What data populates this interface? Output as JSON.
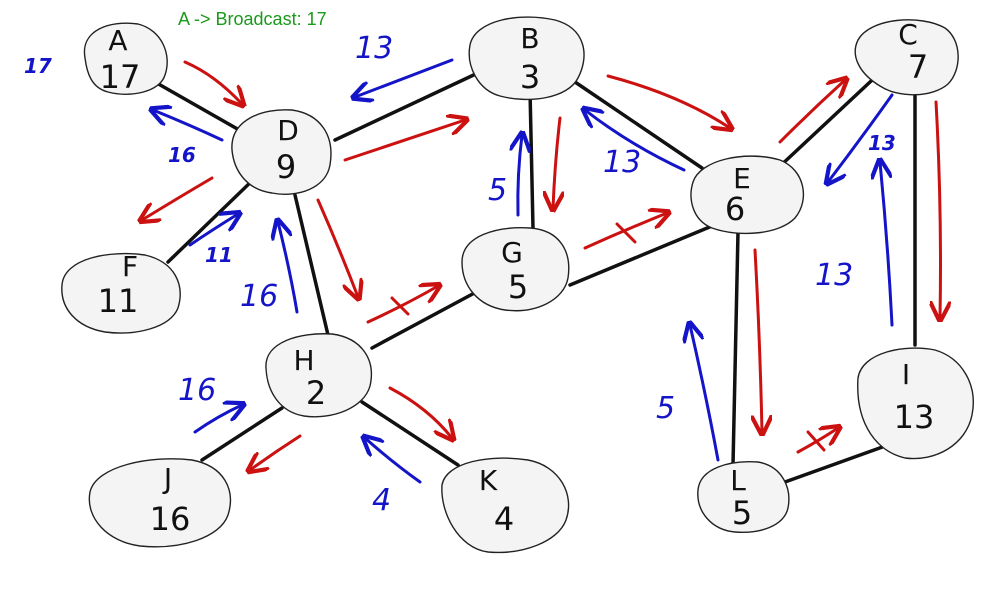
{
  "title": "A -> Broadcast: 17",
  "colors": {
    "title": "#1a9a1a",
    "forward_arrow": "#cc1111",
    "return_arrow": "#1414c8",
    "edge": "#111111"
  },
  "nodes": {
    "A": {
      "letter": "A",
      "value": "17"
    },
    "B": {
      "letter": "B",
      "value": "3"
    },
    "C": {
      "letter": "C",
      "value": "7"
    },
    "D": {
      "letter": "D",
      "value": "9"
    },
    "E": {
      "letter": "E",
      "value": "6"
    },
    "F": {
      "letter": "F",
      "value": "11"
    },
    "G": {
      "letter": "G",
      "value": "5"
    },
    "H": {
      "letter": "H",
      "value": "2"
    },
    "I": {
      "letter": "I",
      "value": "13"
    },
    "J": {
      "letter": "J",
      "value": "16"
    },
    "K": {
      "letter": "K",
      "value": "4"
    },
    "L": {
      "letter": "L",
      "value": "5"
    }
  },
  "labels": {
    "a_out": "17",
    "d_to_a": "16",
    "b_to_d": "13",
    "f_to_d": "11",
    "h_to_d": "16",
    "g_to_b": "5",
    "e_to_b": "13",
    "c_to_e": "13",
    "i_to_c": "13",
    "l_to_e": "5",
    "j_to_h": "16",
    "k_to_h": "4"
  }
}
